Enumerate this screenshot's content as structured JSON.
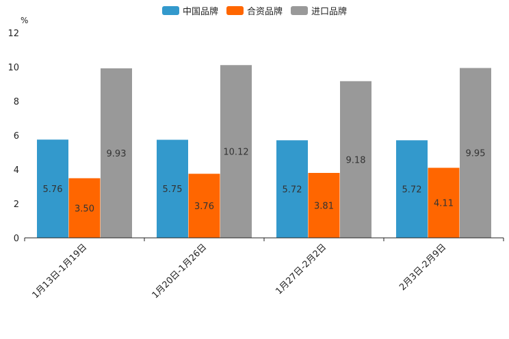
{
  "chart_data": {
    "type": "bar",
    "title": "",
    "xlabel": "",
    "ylabel": "%",
    "ylim": [
      0,
      12
    ],
    "yticks": [
      0,
      2,
      4,
      6,
      8,
      10,
      12
    ],
    "grid": false,
    "legend_position": "top-center",
    "categories": [
      "1月13日-1月19日",
      "1月20日-1月26日",
      "1月27日-2月2日",
      "2月3日-2月9日"
    ],
    "series": [
      {
        "name": "中国品牌",
        "color": "#3399cc",
        "values": [
          5.76,
          5.75,
          5.72,
          5.72
        ],
        "labels": [
          "5.76",
          "5.75",
          "5.72",
          "5.72"
        ]
      },
      {
        "name": "合资品牌",
        "color": "#ff6600",
        "values": [
          3.5,
          3.76,
          3.81,
          4.11
        ],
        "labels": [
          "3.50",
          "3.76",
          "3.81",
          "4.11"
        ]
      },
      {
        "name": "进口品牌",
        "color": "#999999",
        "values": [
          9.93,
          10.12,
          9.18,
          9.95
        ],
        "labels": [
          "9.93",
          "10.12",
          "9.18",
          "9.95"
        ]
      }
    ]
  }
}
